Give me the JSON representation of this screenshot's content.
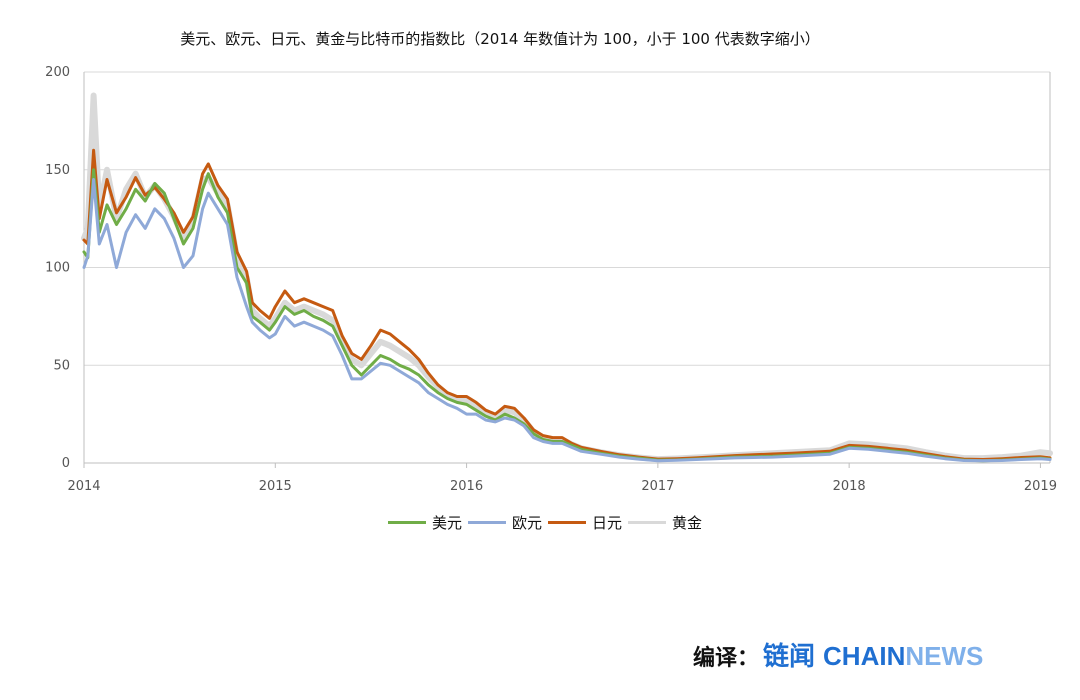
{
  "chart_data": {
    "type": "line",
    "title": "美元、欧元、日元、黄金与比特币的指数比（2014 年数值计为 100，小于 100 代表数字缩小）",
    "xlabel": "",
    "ylabel": "",
    "xlim": [
      2014,
      2019.05
    ],
    "ylim": [
      0,
      200
    ],
    "x_ticks": [
      "2014",
      "2015",
      "2016",
      "2017",
      "2018",
      "2019"
    ],
    "y_ticks": [
      "0",
      "50",
      "100",
      "150",
      "200"
    ],
    "grid": "horizontal",
    "legend_position": "bottom",
    "x": [
      2014.0,
      2014.02,
      2014.05,
      2014.08,
      2014.12,
      2014.17,
      2014.22,
      2014.27,
      2014.32,
      2014.37,
      2014.42,
      2014.47,
      2014.52,
      2014.57,
      2014.62,
      2014.65,
      2014.7,
      2014.75,
      2014.8,
      2014.85,
      2014.88,
      2014.92,
      2014.97,
      2015.0,
      2015.05,
      2015.1,
      2015.15,
      2015.2,
      2015.25,
      2015.3,
      2015.35,
      2015.4,
      2015.45,
      2015.5,
      2015.55,
      2015.6,
      2015.65,
      2015.7,
      2015.75,
      2015.8,
      2015.85,
      2015.9,
      2015.95,
      2016.0,
      2016.05,
      2016.1,
      2016.15,
      2016.2,
      2016.25,
      2016.3,
      2016.35,
      2016.4,
      2016.45,
      2016.5,
      2016.55,
      2016.6,
      2016.7,
      2016.8,
      2016.9,
      2017.0,
      2017.1,
      2017.2,
      2017.3,
      2017.4,
      2017.5,
      2017.6,
      2017.7,
      2017.8,
      2017.9,
      2018.0,
      2018.1,
      2018.2,
      2018.3,
      2018.4,
      2018.5,
      2018.6,
      2018.7,
      2018.8,
      2018.9,
      2019.0,
      2019.05
    ],
    "series": [
      {
        "name": "美元",
        "color": "#70ad47",
        "values": [
          108,
          105,
          150,
          118,
          132,
          122,
          130,
          140,
          134,
          143,
          138,
          125,
          112,
          120,
          140,
          148,
          136,
          128,
          100,
          92,
          75,
          72,
          68,
          72,
          80,
          76,
          78,
          75,
          73,
          70,
          60,
          50,
          45,
          50,
          55,
          53,
          50,
          48,
          45,
          40,
          36,
          33,
          31,
          30,
          27,
          24,
          22,
          25,
          23,
          20,
          15,
          12,
          11,
          11,
          9,
          7,
          5,
          3.5,
          2.5,
          1.5,
          1.6,
          2,
          2.5,
          3,
          3.2,
          3.5,
          4,
          4.5,
          5,
          8,
          7.5,
          6.5,
          5.5,
          4,
          2.5,
          1.5,
          1.2,
          1.5,
          2,
          2.5,
          2
        ]
      },
      {
        "name": "欧元",
        "color": "#8fa9d8",
        "values": [
          100,
          106,
          145,
          112,
          122,
          100,
          118,
          127,
          120,
          130,
          125,
          115,
          100,
          106,
          130,
          138,
          130,
          122,
          95,
          80,
          72,
          68,
          64,
          66,
          75,
          70,
          72,
          70,
          68,
          65,
          55,
          43,
          43,
          47,
          51,
          50,
          47,
          44,
          41,
          36,
          33,
          30,
          28,
          25,
          25,
          22,
          21,
          23,
          22,
          19,
          13,
          11,
          10,
          10,
          8,
          6,
          4.5,
          3,
          2,
          1.2,
          1.4,
          1.8,
          2.2,
          2.6,
          2.8,
          3,
          3.5,
          4,
          4.5,
          7.5,
          7,
          6,
          5,
          3.5,
          2.2,
          1.3,
          1.1,
          1.3,
          1.8,
          2.2,
          1.8
        ]
      },
      {
        "name": "日元",
        "color": "#c55a11",
        "values": [
          114,
          112,
          160,
          125,
          145,
          128,
          136,
          146,
          137,
          141,
          135,
          128,
          118,
          126,
          148,
          153,
          142,
          135,
          108,
          98,
          82,
          78,
          74,
          80,
          88,
          82,
          84,
          82,
          80,
          78,
          65,
          56,
          53,
          60,
          68,
          66,
          62,
          58,
          53,
          46,
          40,
          36,
          34,
          34,
          31,
          27,
          25,
          29,
          28,
          23,
          17,
          14,
          13,
          13,
          10,
          8,
          6,
          4.2,
          3,
          2,
          2.2,
          2.6,
          3.2,
          3.8,
          4.2,
          4.6,
          5,
          5.5,
          6,
          9,
          8.5,
          7.5,
          6.5,
          4.8,
          3.2,
          2,
          1.8,
          2.2,
          2.8,
          3.2,
          2.6
        ]
      },
      {
        "name": "黄金",
        "color": "#d9d9d9",
        "values": [
          115,
          120,
          188,
          130,
          150,
          125,
          140,
          148,
          136,
          142,
          135,
          126,
          115,
          124,
          145,
          146,
          138,
          132,
          105,
          95,
          78,
          74,
          70,
          74,
          82,
          78,
          80,
          78,
          76,
          73,
          62,
          53,
          50,
          56,
          62,
          60,
          57,
          54,
          50,
          44,
          39,
          35,
          33,
          32,
          29,
          26,
          24,
          27,
          26,
          22,
          16,
          13,
          12,
          12,
          9.5,
          7.5,
          5.5,
          4,
          2.8,
          2,
          2.3,
          2.8,
          3.3,
          4,
          4.5,
          5,
          5.5,
          6,
          6.5,
          10,
          9.5,
          8.5,
          7.5,
          5.5,
          3.8,
          2.5,
          2.5,
          3,
          3.8,
          5.5,
          5
        ]
      }
    ]
  },
  "credit": {
    "prefix": "编译：",
    "brand_cn": "链闻",
    "brand_a": "CHAIN",
    "brand_b": "NEWS"
  }
}
